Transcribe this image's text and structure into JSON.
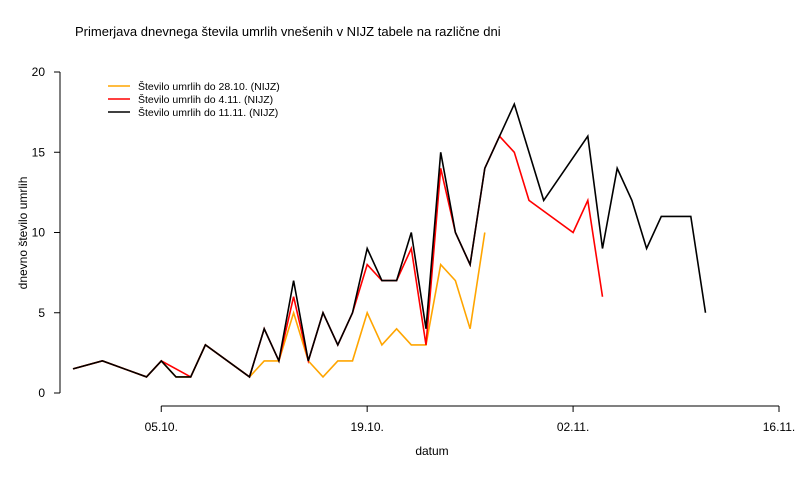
{
  "chart_data": {
    "type": "line",
    "title": "Primerjava dnevnega števila umrlih vnešenih v NIJZ tabele na različne dni",
    "xlabel": "datum",
    "ylabel": "dnevno število umrlih",
    "ylim": [
      0,
      20
    ],
    "yticks": [
      0,
      5,
      10,
      15,
      20
    ],
    "xlim": [
      "2020-09-29",
      "2020-11-16"
    ],
    "xticks": [
      {
        "date": "2020-10-05",
        "label": "05.10."
      },
      {
        "date": "2020-10-19",
        "label": "19.10."
      },
      {
        "date": "2020-11-02",
        "label": "02.11."
      },
      {
        "date": "2020-11-16",
        "label": "16.11."
      }
    ],
    "grid": false,
    "legend_position": "top-left",
    "series": [
      {
        "name": "Število umrlih do 28.10. (NIJZ)",
        "color": "#FFA500",
        "x": [
          "2020-09-29",
          "2020-10-01",
          "2020-10-04",
          "2020-10-05",
          "2020-10-06",
          "2020-10-07",
          "2020-10-08",
          "2020-10-11",
          "2020-10-12",
          "2020-10-13",
          "2020-10-14",
          "2020-10-15",
          "2020-10-16",
          "2020-10-17",
          "2020-10-18",
          "2020-10-19",
          "2020-10-20",
          "2020-10-21",
          "2020-10-22",
          "2020-10-23",
          "2020-10-24",
          "2020-10-25",
          "2020-10-26",
          "2020-10-27",
          "2020-10-28"
        ],
        "y": [
          1.5,
          2,
          1,
          2,
          1,
          1,
          3,
          1,
          2,
          2,
          5,
          2,
          1,
          2,
          2,
          5,
          3,
          4,
          3,
          3,
          8,
          7,
          4,
          10,
          null
        ]
      },
      {
        "name": "Število umrlih do 4.11. (NIJZ)",
        "color": "#FF0000",
        "x": [
          "2020-09-29",
          "2020-10-01",
          "2020-10-04",
          "2020-10-05",
          "2020-10-07",
          "2020-10-08",
          "2020-10-11",
          "2020-10-12",
          "2020-10-13",
          "2020-10-14",
          "2020-10-15",
          "2020-10-16",
          "2020-10-17",
          "2020-10-18",
          "2020-10-19",
          "2020-10-20",
          "2020-10-21",
          "2020-10-22",
          "2020-10-23",
          "2020-10-24",
          "2020-10-25",
          "2020-10-26",
          "2020-10-27",
          "2020-10-28",
          "2020-10-29",
          "2020-10-30",
          "2020-11-02",
          "2020-11-03",
          "2020-11-04"
        ],
        "y": [
          1.5,
          2,
          1,
          2,
          1,
          3,
          1,
          4,
          2,
          6,
          2,
          5,
          3,
          5,
          8,
          7,
          7,
          9,
          3,
          14,
          10,
          8,
          14,
          16,
          15,
          12,
          10,
          12,
          6
        ]
      },
      {
        "name": "Število umrlih do 11.11. (NIJZ)",
        "color": "#000000",
        "x": [
          "2020-09-29",
          "2020-10-01",
          "2020-10-04",
          "2020-10-05",
          "2020-10-06",
          "2020-10-07",
          "2020-10-08",
          "2020-10-11",
          "2020-10-12",
          "2020-10-13",
          "2020-10-14",
          "2020-10-15",
          "2020-10-16",
          "2020-10-17",
          "2020-10-18",
          "2020-10-19",
          "2020-10-20",
          "2020-10-21",
          "2020-10-22",
          "2020-10-23",
          "2020-10-24",
          "2020-10-25",
          "2020-10-26",
          "2020-10-27",
          "2020-10-29",
          "2020-10-31",
          "2020-11-03",
          "2020-11-04",
          "2020-11-05",
          "2020-11-06",
          "2020-11-07",
          "2020-11-08",
          "2020-11-10",
          "2020-11-11"
        ],
        "y": [
          1.5,
          2,
          1,
          2,
          1,
          1,
          3,
          1,
          4,
          2,
          7,
          2,
          5,
          3,
          5,
          9,
          7,
          7,
          10,
          4,
          15,
          10,
          8,
          14,
          18,
          12,
          16,
          9,
          14,
          12,
          9,
          11,
          11,
          5
        ]
      }
    ]
  }
}
